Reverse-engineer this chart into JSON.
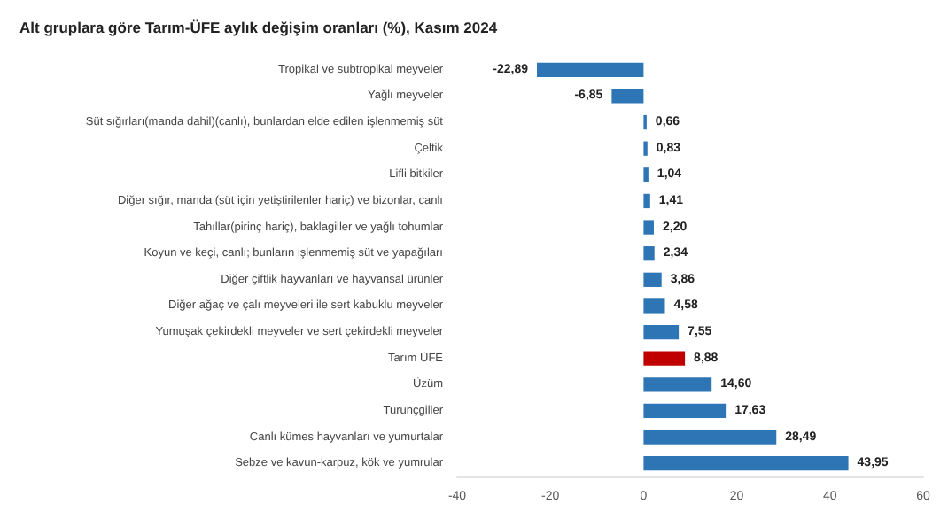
{
  "chart_data": {
    "type": "bar",
    "orientation": "horizontal",
    "title": "Alt gruplara göre Tarım-ÜFE aylık değişim oranları (%), Kasım 2024",
    "categories": [
      "Tropikal ve subtropikal meyveler",
      "Yağlı meyveler",
      "Süt sığırları(manda dahil)(canlı), bunlardan elde edilen işlenmemiş süt",
      "Çeltik",
      "Lifli bitkiler",
      "Diğer sığır, manda (süt için yetiştirilenler hariç) ve bizonlar, canlı",
      "Tahıllar(pirinç hariç), baklagiller ve yağlı tohumlar",
      "Koyun ve keçi, canlı; bunların işlenmemiş süt ve yapağıları",
      "Diğer çiftlik hayvanları ve hayvansal ürünler",
      "Diğer ağaç ve çalı meyveleri ile sert kabuklu meyveler",
      "Yumuşak çekirdekli meyveler ve sert çekirdekli meyveler",
      "Tarım ÜFE",
      "Üzüm",
      "Turunçgiller",
      "Canlı kümes hayvanları ve yumurtalar",
      "Sebze ve kavun-karpuz, kök ve yumrular"
    ],
    "values": [
      -22.89,
      -6.85,
      0.66,
      0.83,
      1.04,
      1.41,
      2.2,
      2.34,
      3.86,
      4.58,
      7.55,
      8.88,
      14.6,
      17.63,
      28.49,
      43.95
    ],
    "value_labels": [
      "-22,89",
      "-6,85",
      "0,66",
      "0,83",
      "1,04",
      "1,41",
      "2,20",
      "2,34",
      "3,86",
      "4,58",
      "7,55",
      "8,88",
      "14,60",
      "17,63",
      "28,49",
      "43,95"
    ],
    "colors": [
      "#2e75b6",
      "#2e75b6",
      "#2e75b6",
      "#2e75b6",
      "#2e75b6",
      "#2e75b6",
      "#2e75b6",
      "#2e75b6",
      "#2e75b6",
      "#2e75b6",
      "#2e75b6",
      "#c00000",
      "#2e75b6",
      "#2e75b6",
      "#2e75b6",
      "#2e75b6"
    ],
    "xlim": [
      -40,
      60
    ],
    "xticks": [
      -40,
      -20,
      0,
      20,
      40,
      60
    ],
    "grid": false
  }
}
